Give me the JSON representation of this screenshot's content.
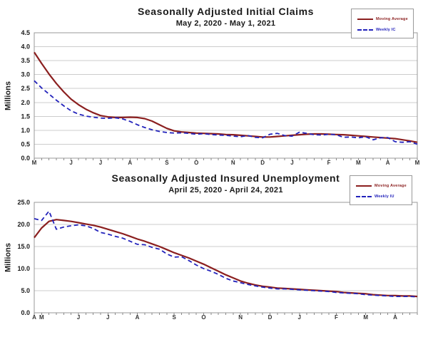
{
  "page": {
    "background": "#ffffff"
  },
  "colors": {
    "moving_average": "#8b1f1f",
    "weekly": "#2222bb",
    "grid": "#cccccc",
    "plot_border": "#999999",
    "tick": "#888888",
    "text": "#1a1a1a"
  },
  "chart_data": [
    {
      "type": "line",
      "title": "Seasonally Adjusted Initial Claims",
      "subtitle": "May 2, 2020 - May 1, 2021",
      "ylabel": "Millions",
      "ylim": [
        0,
        4.5
      ],
      "ytick_labels": [
        "0.0",
        "0.5",
        "1.0",
        "1.5",
        "2.0",
        "2.5",
        "3.0",
        "3.5",
        "4.0",
        "4.5"
      ],
      "grid": true,
      "legend_position": "top-right",
      "n_weeks": 53,
      "x_months": [
        {
          "label": "M",
          "week": 0
        },
        {
          "label": "J",
          "week": 5
        },
        {
          "label": "J",
          "week": 9
        },
        {
          "label": "A",
          "week": 13
        },
        {
          "label": "S",
          "week": 18
        },
        {
          "label": "O",
          "week": 22
        },
        {
          "label": "N",
          "week": 27
        },
        {
          "label": "D",
          "week": 31
        },
        {
          "label": "J",
          "week": 35
        },
        {
          "label": "F",
          "week": 40
        },
        {
          "label": "M",
          "week": 44
        },
        {
          "label": "A",
          "week": 48
        },
        {
          "label": "M",
          "week": 52
        }
      ],
      "series": [
        {
          "name": "Moving Average",
          "style": "solid",
          "color": "#8b1f1f",
          "values": [
            3.8,
            3.4,
            3.02,
            2.68,
            2.38,
            2.12,
            1.92,
            1.76,
            1.63,
            1.53,
            1.48,
            1.46,
            1.46,
            1.47,
            1.46,
            1.42,
            1.33,
            1.2,
            1.07,
            0.98,
            0.94,
            0.92,
            0.9,
            0.89,
            0.88,
            0.87,
            0.85,
            0.84,
            0.82,
            0.8,
            0.78,
            0.76,
            0.76,
            0.78,
            0.8,
            0.82,
            0.84,
            0.86,
            0.87,
            0.87,
            0.86,
            0.85,
            0.84,
            0.82,
            0.8,
            0.78,
            0.76,
            0.74,
            0.72,
            0.7,
            0.66,
            0.62,
            0.57
          ]
        },
        {
          "name": "Weekly IC",
          "style": "dashed",
          "color": "#2222bb",
          "values": [
            2.78,
            2.52,
            2.3,
            2.08,
            1.88,
            1.7,
            1.58,
            1.51,
            1.47,
            1.44,
            1.43,
            1.45,
            1.41,
            1.32,
            1.2,
            1.1,
            1.02,
            0.96,
            0.92,
            0.9,
            0.91,
            0.89,
            0.86,
            0.88,
            0.85,
            0.83,
            0.82,
            0.79,
            0.77,
            0.81,
            0.75,
            0.73,
            0.86,
            0.89,
            0.81,
            0.79,
            0.93,
            0.89,
            0.84,
            0.83,
            0.86,
            0.84,
            0.75,
            0.76,
            0.73,
            0.77,
            0.66,
            0.73,
            0.74,
            0.59,
            0.57,
            0.59,
            0.5
          ]
        }
      ]
    },
    {
      "type": "line",
      "title": "Seasonally Adjusted Insured Unemployment",
      "subtitle": "April 25, 2020 - April 24, 2021",
      "ylabel": "Millions",
      "ylim": [
        0,
        25
      ],
      "ytick_labels": [
        "0.0",
        "5.0",
        "10.0",
        "15.0",
        "20.0",
        "25.0"
      ],
      "grid": true,
      "legend_position": "top-right",
      "n_weeks": 53,
      "x_months": [
        {
          "label": "A",
          "week": 0
        },
        {
          "label": "M",
          "week": 1
        },
        {
          "label": "J",
          "week": 6
        },
        {
          "label": "J",
          "week": 10
        },
        {
          "label": "A",
          "week": 14
        },
        {
          "label": "S",
          "week": 19
        },
        {
          "label": "O",
          "week": 23
        },
        {
          "label": "N",
          "week": 28
        },
        {
          "label": "D",
          "week": 32
        },
        {
          "label": "J",
          "week": 36
        },
        {
          "label": "F",
          "week": 41
        },
        {
          "label": "M",
          "week": 45
        },
        {
          "label": "A",
          "week": 49
        }
      ],
      "series": [
        {
          "name": "Moving Average",
          "style": "solid",
          "color": "#8b1f1f",
          "values": [
            17.0,
            19.2,
            20.7,
            21.1,
            20.9,
            20.7,
            20.4,
            20.1,
            19.8,
            19.4,
            18.9,
            18.4,
            17.9,
            17.3,
            16.7,
            16.2,
            15.6,
            15.0,
            14.3,
            13.6,
            13.0,
            12.4,
            11.7,
            11.0,
            10.2,
            9.4,
            8.6,
            7.9,
            7.2,
            6.7,
            6.3,
            6.0,
            5.8,
            5.6,
            5.5,
            5.4,
            5.3,
            5.2,
            5.1,
            5.0,
            4.9,
            4.8,
            4.6,
            4.5,
            4.4,
            4.3,
            4.1,
            4.0,
            3.9,
            3.9,
            3.8,
            3.8,
            3.7
          ]
        },
        {
          "name": "Weekly IU",
          "style": "dashed",
          "color": "#2222bb",
          "values": [
            21.3,
            20.9,
            23.0,
            18.9,
            19.4,
            19.7,
            19.9,
            19.7,
            19.1,
            18.2,
            17.8,
            17.3,
            16.9,
            16.2,
            15.5,
            15.4,
            14.8,
            14.4,
            13.3,
            12.6,
            12.7,
            11.8,
            10.8,
            10.0,
            9.4,
            8.7,
            7.8,
            7.2,
            6.8,
            6.4,
            6.1,
            5.8,
            5.6,
            5.4,
            5.4,
            5.3,
            5.2,
            5.1,
            5.0,
            4.9,
            4.8,
            4.6,
            4.5,
            4.4,
            4.3,
            4.1,
            4.0,
            3.9,
            3.8,
            3.7,
            3.7,
            3.7,
            3.6
          ]
        }
      ]
    }
  ]
}
